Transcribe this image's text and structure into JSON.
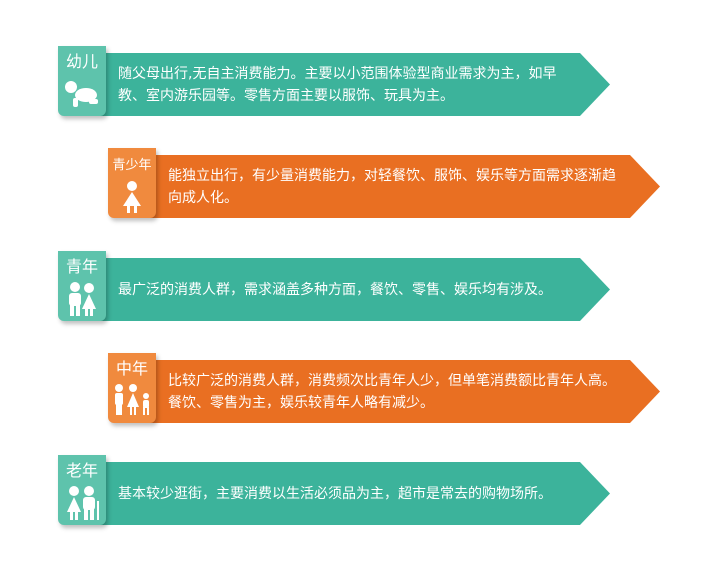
{
  "segments": [
    {
      "label": "幼儿",
      "icon": "crawling-baby-icon",
      "text": "随父母出行,无自主消费能力。主要以小范围体验型商业需求为主，如早教、室内游乐园等。零售方面主要以服饰、玩具为主。"
    },
    {
      "label": "青少年",
      "icon": "girl-icon",
      "text": "能独立出行，有少量消费能力，对轻餐饮、服饰、娱乐等方面需求逐渐趋向成人化。"
    },
    {
      "label": "青年",
      "icon": "couple-icon",
      "text": "最广泛的消费人群，需求涵盖多种方面，餐饮、零售、娱乐均有涉及。"
    },
    {
      "label": "中年",
      "icon": "family-icon",
      "text": "比较广泛的消费人群，消费频次比青年人少，但单笔消费额比青年人高。餐饮、零售为主，娱乐较青年人略有减少。"
    },
    {
      "label": "老年",
      "icon": "elderly-couple-icon",
      "text": "基本较少逛街，主要消费以生活必须品为主，超市是常去的购物场所。"
    }
  ],
  "colors": {
    "teal": "#3cb39b",
    "teal_badge": "#5ec3ac",
    "orange": "#e96f22",
    "orange_badge": "#f08a3e"
  }
}
